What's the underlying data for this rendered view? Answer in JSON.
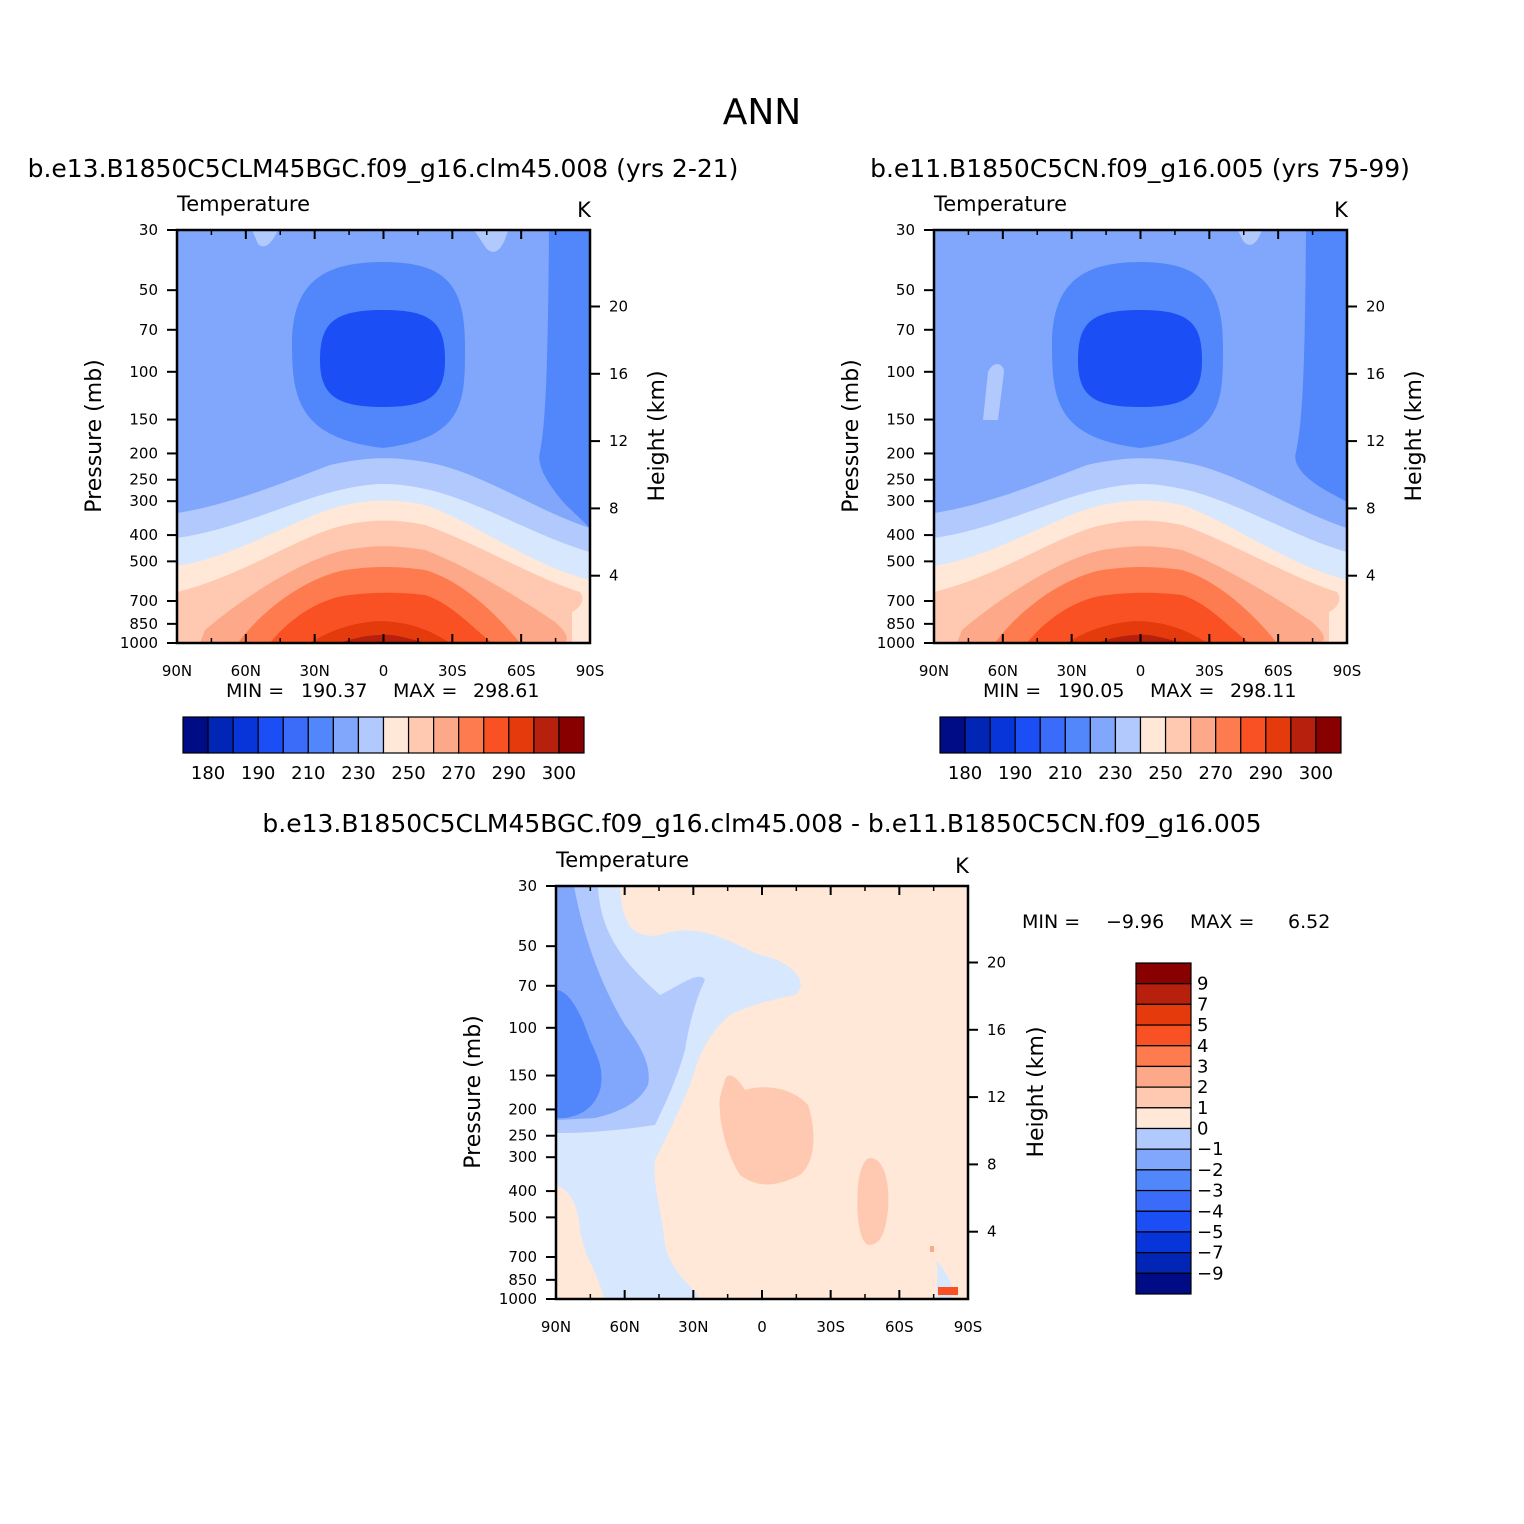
{
  "figure": {
    "title": "ANN",
    "colors": {
      "levels": [
        "#000b86",
        "#0125b5",
        "#0735d9",
        "#1b4ef5",
        "#3a6cf9",
        "#5287fb",
        "#80a7fc",
        "#b1c9fd",
        "#d7e7fd",
        "#ffe8d8",
        "#fec9b0",
        "#fda888",
        "#fd7b4e",
        "#fa5124",
        "#e43a0c",
        "#b6200c",
        "#880000"
      ]
    }
  },
  "chart_data": [
    {
      "id": "panel1",
      "type": "contour",
      "case_title": "b.e13.B1850C5CLM45BGC.f09_g16.clm45.008 (yrs 2-21)",
      "variable": "Temperature",
      "units": "K",
      "x_ticks": [
        "90N",
        "60N",
        "30N",
        "0",
        "30S",
        "60S",
        "90S"
      ],
      "y_ticks": [
        "30",
        "50",
        "70",
        "100",
        "150",
        "200",
        "250",
        "300",
        "400",
        "500",
        "700",
        "850",
        "1000"
      ],
      "y2_ticks": [
        "20",
        "16",
        "12",
        "8",
        "4"
      ],
      "ylabel": "Pressure (mb)",
      "y2label": "Height (km)",
      "min_label": "MIN =",
      "min": "190.37",
      "max_label": "MAX =",
      "max": "298.61",
      "colorbar_labels": [
        "180",
        "190",
        "210",
        "230",
        "250",
        "270",
        "290",
        "300"
      ],
      "colorbar_orientation": "horizontal"
    },
    {
      "id": "panel2",
      "type": "contour",
      "case_title": "b.e11.B1850C5CN.f09_g16.005 (yrs 75-99)",
      "variable": "Temperature",
      "units": "K",
      "x_ticks": [
        "90N",
        "60N",
        "30N",
        "0",
        "30S",
        "60S",
        "90S"
      ],
      "y_ticks": [
        "30",
        "50",
        "70",
        "100",
        "150",
        "200",
        "250",
        "300",
        "400",
        "500",
        "700",
        "850",
        "1000"
      ],
      "y2_ticks": [
        "20",
        "16",
        "12",
        "8",
        "4"
      ],
      "ylabel": "Pressure (mb)",
      "y2label": "Height (km)",
      "min_label": "MIN =",
      "min": "190.05",
      "max_label": "MAX =",
      "max": "298.11",
      "colorbar_labels": [
        "180",
        "190",
        "210",
        "230",
        "250",
        "270",
        "290",
        "300"
      ],
      "colorbar_orientation": "horizontal"
    },
    {
      "id": "panel3",
      "type": "contour",
      "case_title": "b.e13.B1850C5CLM45BGC.f09_g16.clm45.008 - b.e11.B1850C5CN.f09_g16.005",
      "variable": "Temperature",
      "units": "K",
      "x_ticks": [
        "90N",
        "60N",
        "30N",
        "0",
        "30S",
        "60S",
        "90S"
      ],
      "y_ticks": [
        "30",
        "50",
        "70",
        "100",
        "150",
        "200",
        "250",
        "300",
        "400",
        "500",
        "700",
        "850",
        "1000"
      ],
      "y2_ticks": [
        "20",
        "16",
        "12",
        "8",
        "4"
      ],
      "ylabel": "Pressure (mb)",
      "y2label": "Height (km)",
      "min_label": "MIN =",
      "min": "-9.96",
      "max_label": "MAX =",
      "max": "6.52",
      "colorbar_labels": [
        "9",
        "7",
        "5",
        "4",
        "3",
        "2",
        "1",
        "0",
        "-1",
        "-2",
        "-3",
        "-4",
        "-5",
        "-7",
        "-9"
      ],
      "colorbar_orientation": "vertical"
    }
  ]
}
